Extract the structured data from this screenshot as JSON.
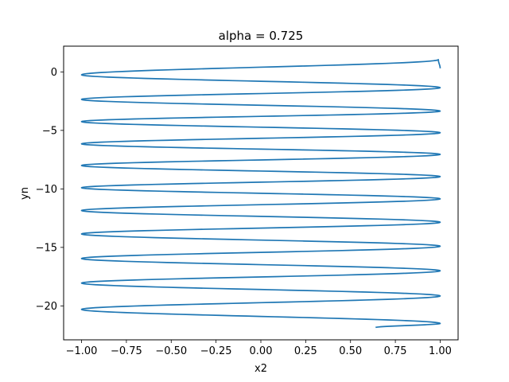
{
  "chart_data": {
    "type": "line",
    "title": "alpha = 0.725",
    "xlabel": "x2",
    "ylabel": "yn",
    "xlim": [
      -1.1,
      1.1
    ],
    "ylim": [
      -22.9,
      2.2
    ],
    "xticks": [
      -1.0,
      -0.75,
      -0.5,
      -0.25,
      0.0,
      0.25,
      0.5,
      0.75,
      1.0
    ],
    "xtick_labels": [
      "−1.00",
      "−0.75",
      "−0.50",
      "−0.25",
      "0.00",
      "0.25",
      "0.50",
      "0.75",
      "1.00"
    ],
    "yticks": [
      0,
      -5,
      -10,
      -15,
      -20
    ],
    "ytick_labels": [
      "0",
      "−5",
      "−10",
      "−15",
      "−20"
    ],
    "grid": false,
    "color": "#1f77b4",
    "series": [
      {
        "name": "",
        "x": [
          1.0,
          0.99,
          -1.0,
          1.0,
          -1.0,
          1.0,
          -1.0,
          1.0,
          -1.0,
          1.0,
          -1.0,
          1.0,
          -1.0,
          1.0,
          -1.0,
          1.0,
          -1.0,
          1.0,
          -1.0,
          1.0,
          -1.0,
          1.0,
          -1.0,
          1.0,
          0.64
        ],
        "y": [
          0.3,
          1.05,
          -0.25,
          -1.35,
          -2.35,
          -3.35,
          -4.25,
          -5.2,
          -6.15,
          -7.05,
          -8.0,
          -8.95,
          -9.9,
          -10.85,
          -11.85,
          -12.85,
          -13.85,
          -14.9,
          -15.95,
          -17.0,
          -18.05,
          -19.15,
          -20.3,
          -21.5,
          -21.85
        ]
      }
    ]
  }
}
